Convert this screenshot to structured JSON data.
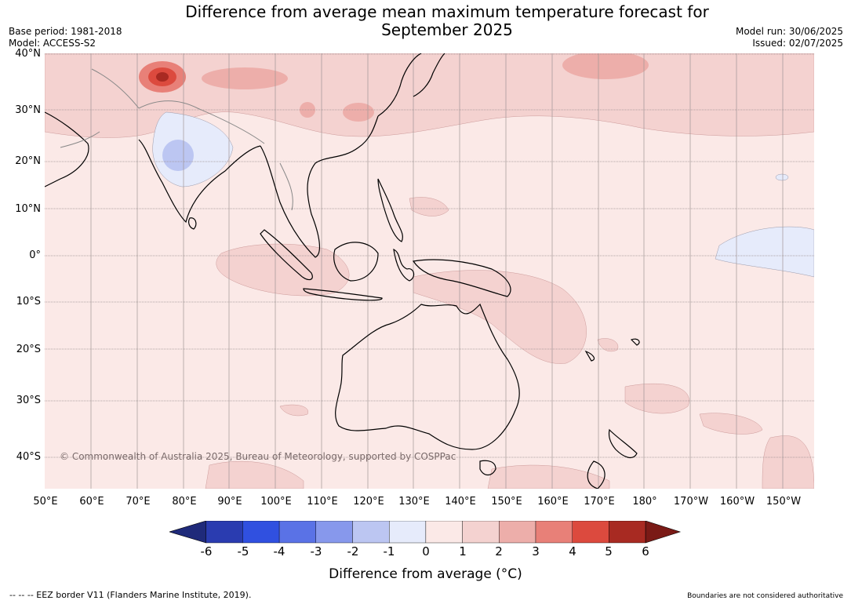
{
  "header": {
    "title_line1": "Difference from average mean maximum temperature forecast for",
    "title_line2": "September 2025",
    "base_period": "Base period: 1981-2018",
    "model": "Model: ACCESS-S2",
    "model_run": "Model run: 30/06/2025",
    "issued": "Issued: 02/07/2025"
  },
  "map": {
    "latitudes": [
      "40°N",
      "30°N",
      "20°N",
      "10°N",
      "0°",
      "10°S",
      "20°S",
      "30°S",
      "40°S"
    ],
    "longitudes": [
      "50°E",
      "60°E",
      "70°E",
      "80°E",
      "90°E",
      "100°E",
      "110°E",
      "120°E",
      "130°E",
      "140°E",
      "150°E",
      "160°E",
      "170°E",
      "180°",
      "170°W",
      "160°W",
      "150°W"
    ],
    "copyright": "© Commonwealth of Australia 2025, Bureau of Meteorology, supported by COSPPac"
  },
  "legend": {
    "ticks": [
      "-6",
      "-5",
      "-4",
      "-3",
      "-2",
      "-1",
      "0",
      "1",
      "2",
      "3",
      "4",
      "5",
      "6"
    ],
    "colors": [
      "#1f2a7a",
      "#2a3cb0",
      "#3050e0",
      "#5a72e6",
      "#8798ec",
      "#bcc6f2",
      "#e6ebfb",
      "#fbe9e7",
      "#f4d2d0",
      "#edaeaa",
      "#e88078",
      "#dc4a3e",
      "#a82a22",
      "#7a1a16"
    ],
    "title": "Difference from average (°C)"
  },
  "footer": {
    "eez_note": "--  --  -- EEZ border V11 (Flanders Marine Institute, 2019).",
    "boundaries_note": "Boundaries are not considered authoritative"
  }
}
